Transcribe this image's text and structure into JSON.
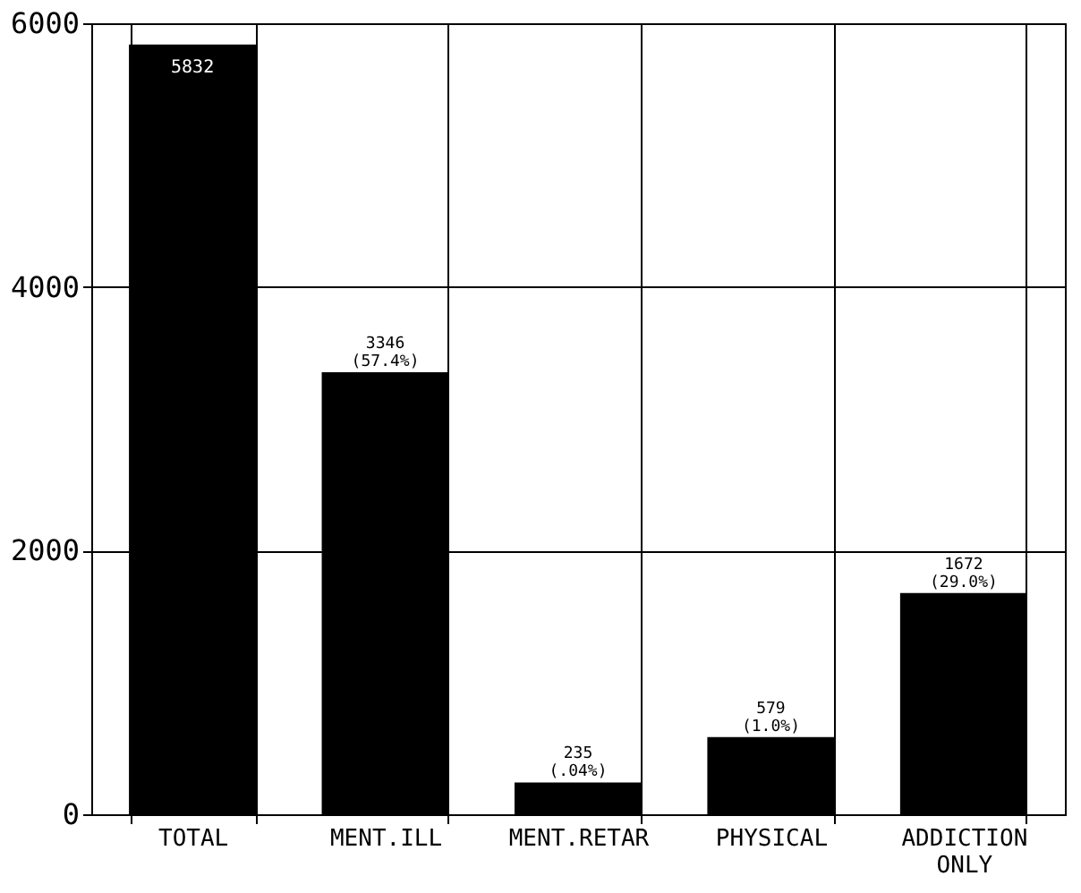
{
  "chart_data": {
    "type": "bar",
    "categories": [
      "TOTAL",
      "MENT.ILL",
      "MENT.RETAR",
      "PHYSICAL",
      "ADDICTION ONLY"
    ],
    "values": [
      5832,
      3346,
      235,
      579,
      1672
    ],
    "value_labels": [
      "5832",
      "3346 (57.4%)",
      "235 (.04%)",
      "579 (1.0%)",
      "1672 (29.0%)"
    ],
    "color": "#000000",
    "ylim": [
      0,
      6000
    ],
    "yticks": [
      0,
      2000,
      4000,
      6000
    ],
    "grid": true
  }
}
